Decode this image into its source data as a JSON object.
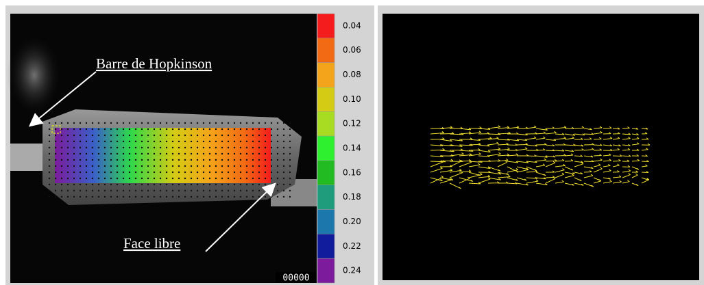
{
  "left_panel": {
    "annotations": [
      "Barre de Hopkinson",
      "Face libre"
    ],
    "colorbar": {
      "labels": [
        "0.04",
        "0.06",
        "0.08",
        "0.10",
        "0.12",
        "0.14",
        "0.16",
        "0.18",
        "0.20",
        "0.22",
        "0.24"
      ],
      "colors": [
        "#f41c1c",
        "#f26a14",
        "#f4a41a",
        "#d4cc14",
        "#a8dc22",
        "#2ef02e",
        "#22bc22",
        "#1e9c7c",
        "#1c78ac",
        "#101c9c",
        "#7c1c9c"
      ]
    },
    "frame_counter": "00000"
  }
}
